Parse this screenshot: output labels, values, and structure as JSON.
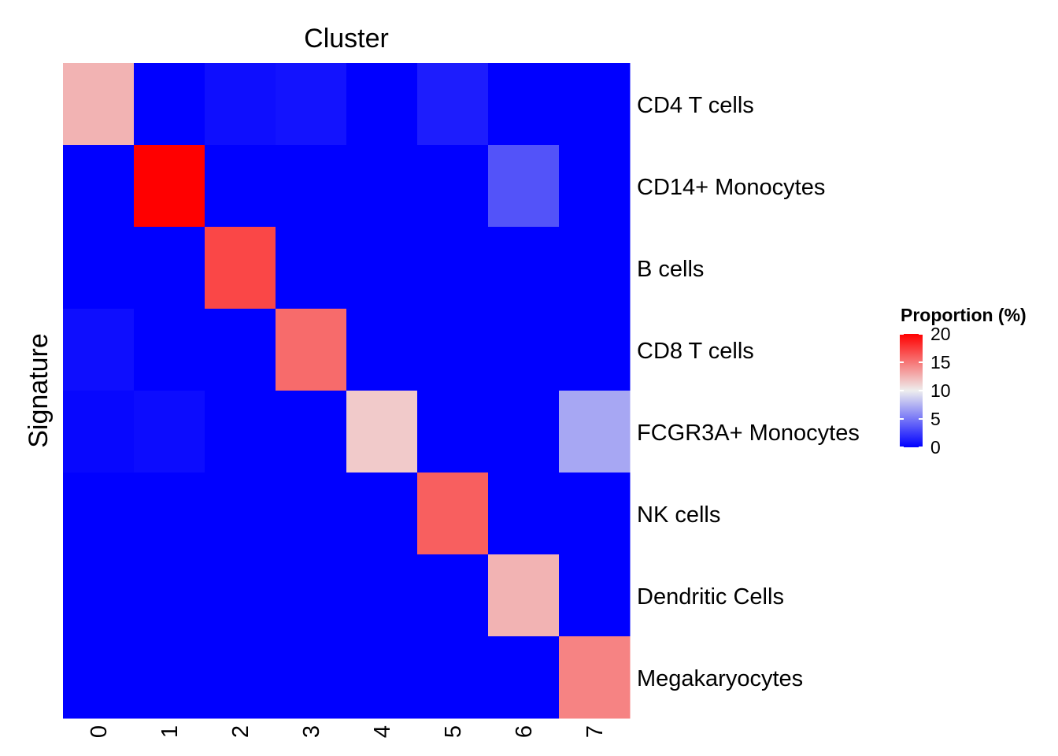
{
  "chart_data": {
    "type": "heatmap",
    "title": "Cluster",
    "xlabel": "Cluster",
    "ylabel": "Signature",
    "x_categories": [
      "0",
      "1",
      "2",
      "3",
      "4",
      "5",
      "6",
      "7"
    ],
    "y_categories": [
      "CD4 T cells",
      "CD14+ Monocytes",
      "B cells",
      "CD8 T cells",
      "FCGR3A+ Monocytes",
      "NK cells",
      "Dendritic Cells",
      "Megakaryocytes"
    ],
    "values": [
      [
        12.5,
        0.0,
        0.6,
        0.8,
        0.0,
        1.2,
        0.0,
        0.0
      ],
      [
        0.0,
        20.0,
        0.0,
        0.0,
        0.0,
        0.0,
        3.5,
        0.0
      ],
      [
        0.0,
        0.0,
        17.0,
        0.0,
        0.0,
        0.0,
        0.0,
        0.0
      ],
      [
        0.6,
        0.0,
        0.0,
        15.5,
        0.0,
        0.0,
        0.0,
        0.0
      ],
      [
        0.3,
        0.5,
        0.0,
        0.0,
        11.5,
        0.0,
        0.0,
        7.0
      ],
      [
        0.0,
        0.0,
        0.0,
        0.0,
        0.0,
        16.0,
        0.0,
        0.0
      ],
      [
        0.0,
        0.0,
        0.0,
        0.0,
        0.0,
        0.0,
        12.5,
        0.0
      ],
      [
        0.0,
        0.0,
        0.0,
        0.0,
        0.0,
        0.0,
        0.0,
        14.5
      ]
    ],
    "legend": {
      "title": "Proportion (%)",
      "ticks": [
        "20",
        "15",
        "10",
        "5",
        "0"
      ],
      "tick_values": [
        20,
        15,
        10,
        5,
        0
      ],
      "range": [
        0,
        20
      ],
      "colors": {
        "low": "#0000ff",
        "mid": "#eeeeee",
        "high": "#ff0000"
      },
      "midpoint": 10,
      "placement": "right"
    }
  }
}
